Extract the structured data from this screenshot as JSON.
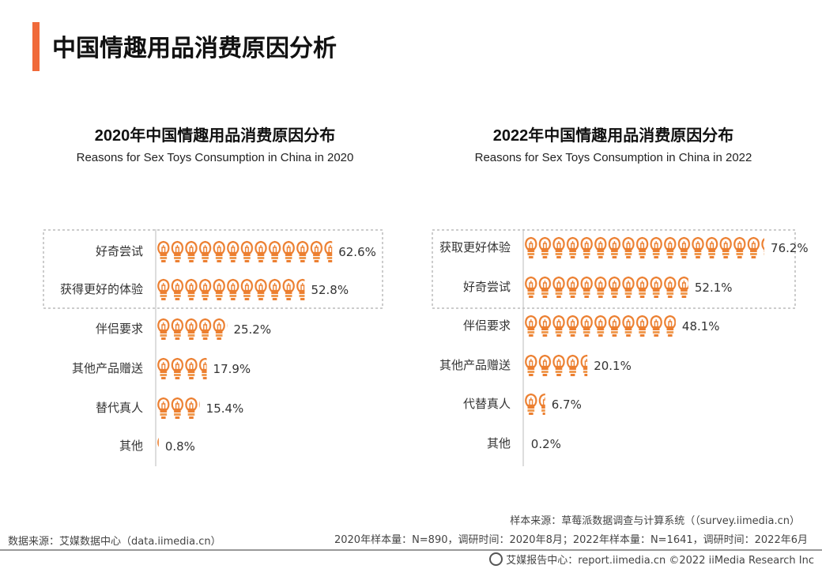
{
  "title": "中国情趣用品消费原因分析",
  "accent_color": "#f06a3a",
  "bar_color": "#ec7f30",
  "chart_data": [
    {
      "type": "bar",
      "orientation": "horizontal",
      "title": "2020年中国情趣用品消费原因分布",
      "subtitle": "Reasons for Sex Toys Consumption in China in 2020",
      "categories": [
        "好奇尝试",
        "获得更好的体验",
        "伴侣要求",
        "其他产品赠送",
        "替代真人",
        "其他"
      ],
      "values": [
        62.6,
        52.8,
        25.2,
        17.9,
        15.4,
        0.8
      ],
      "labels": [
        "62.6%",
        "52.8%",
        "25.2%",
        "17.9%",
        "15.4%",
        "0.8%"
      ],
      "highlighted": [
        0,
        1
      ],
      "mark_icon": "lightbulb-icon"
    },
    {
      "type": "bar",
      "orientation": "horizontal",
      "title": "2022年中国情趣用品消费原因分布",
      "subtitle": "Reasons for Sex Toys Consumption in China in 2022",
      "categories": [
        "获取更好体验",
        "好奇尝试",
        "伴侣要求",
        "其他产品赠送",
        "代替真人",
        "其他"
      ],
      "values": [
        76.2,
        52.1,
        48.1,
        20.1,
        6.7,
        0.2
      ],
      "labels": [
        "76.2%",
        "52.1%",
        "48.1%",
        "20.1%",
        "6.7%",
        "0.2%"
      ],
      "highlighted": [
        0,
        1
      ],
      "mark_icon": "lightbulb-icon"
    }
  ],
  "footer": {
    "data_source": "数据来源：艾媒数据中心（data.iimedia.cn）",
    "sample_source": "样本来源：草莓派数据调查与计算系统（（survey.iimedia.cn）",
    "sample_info": "2020年样本量：N=890，调研时间：2020年8月；2022年样本量：N=1641，调研时间：2022年6月",
    "report": "艾媒报告中心：report.iimedia.cn  ©2022  iiMedia Research  Inc"
  }
}
